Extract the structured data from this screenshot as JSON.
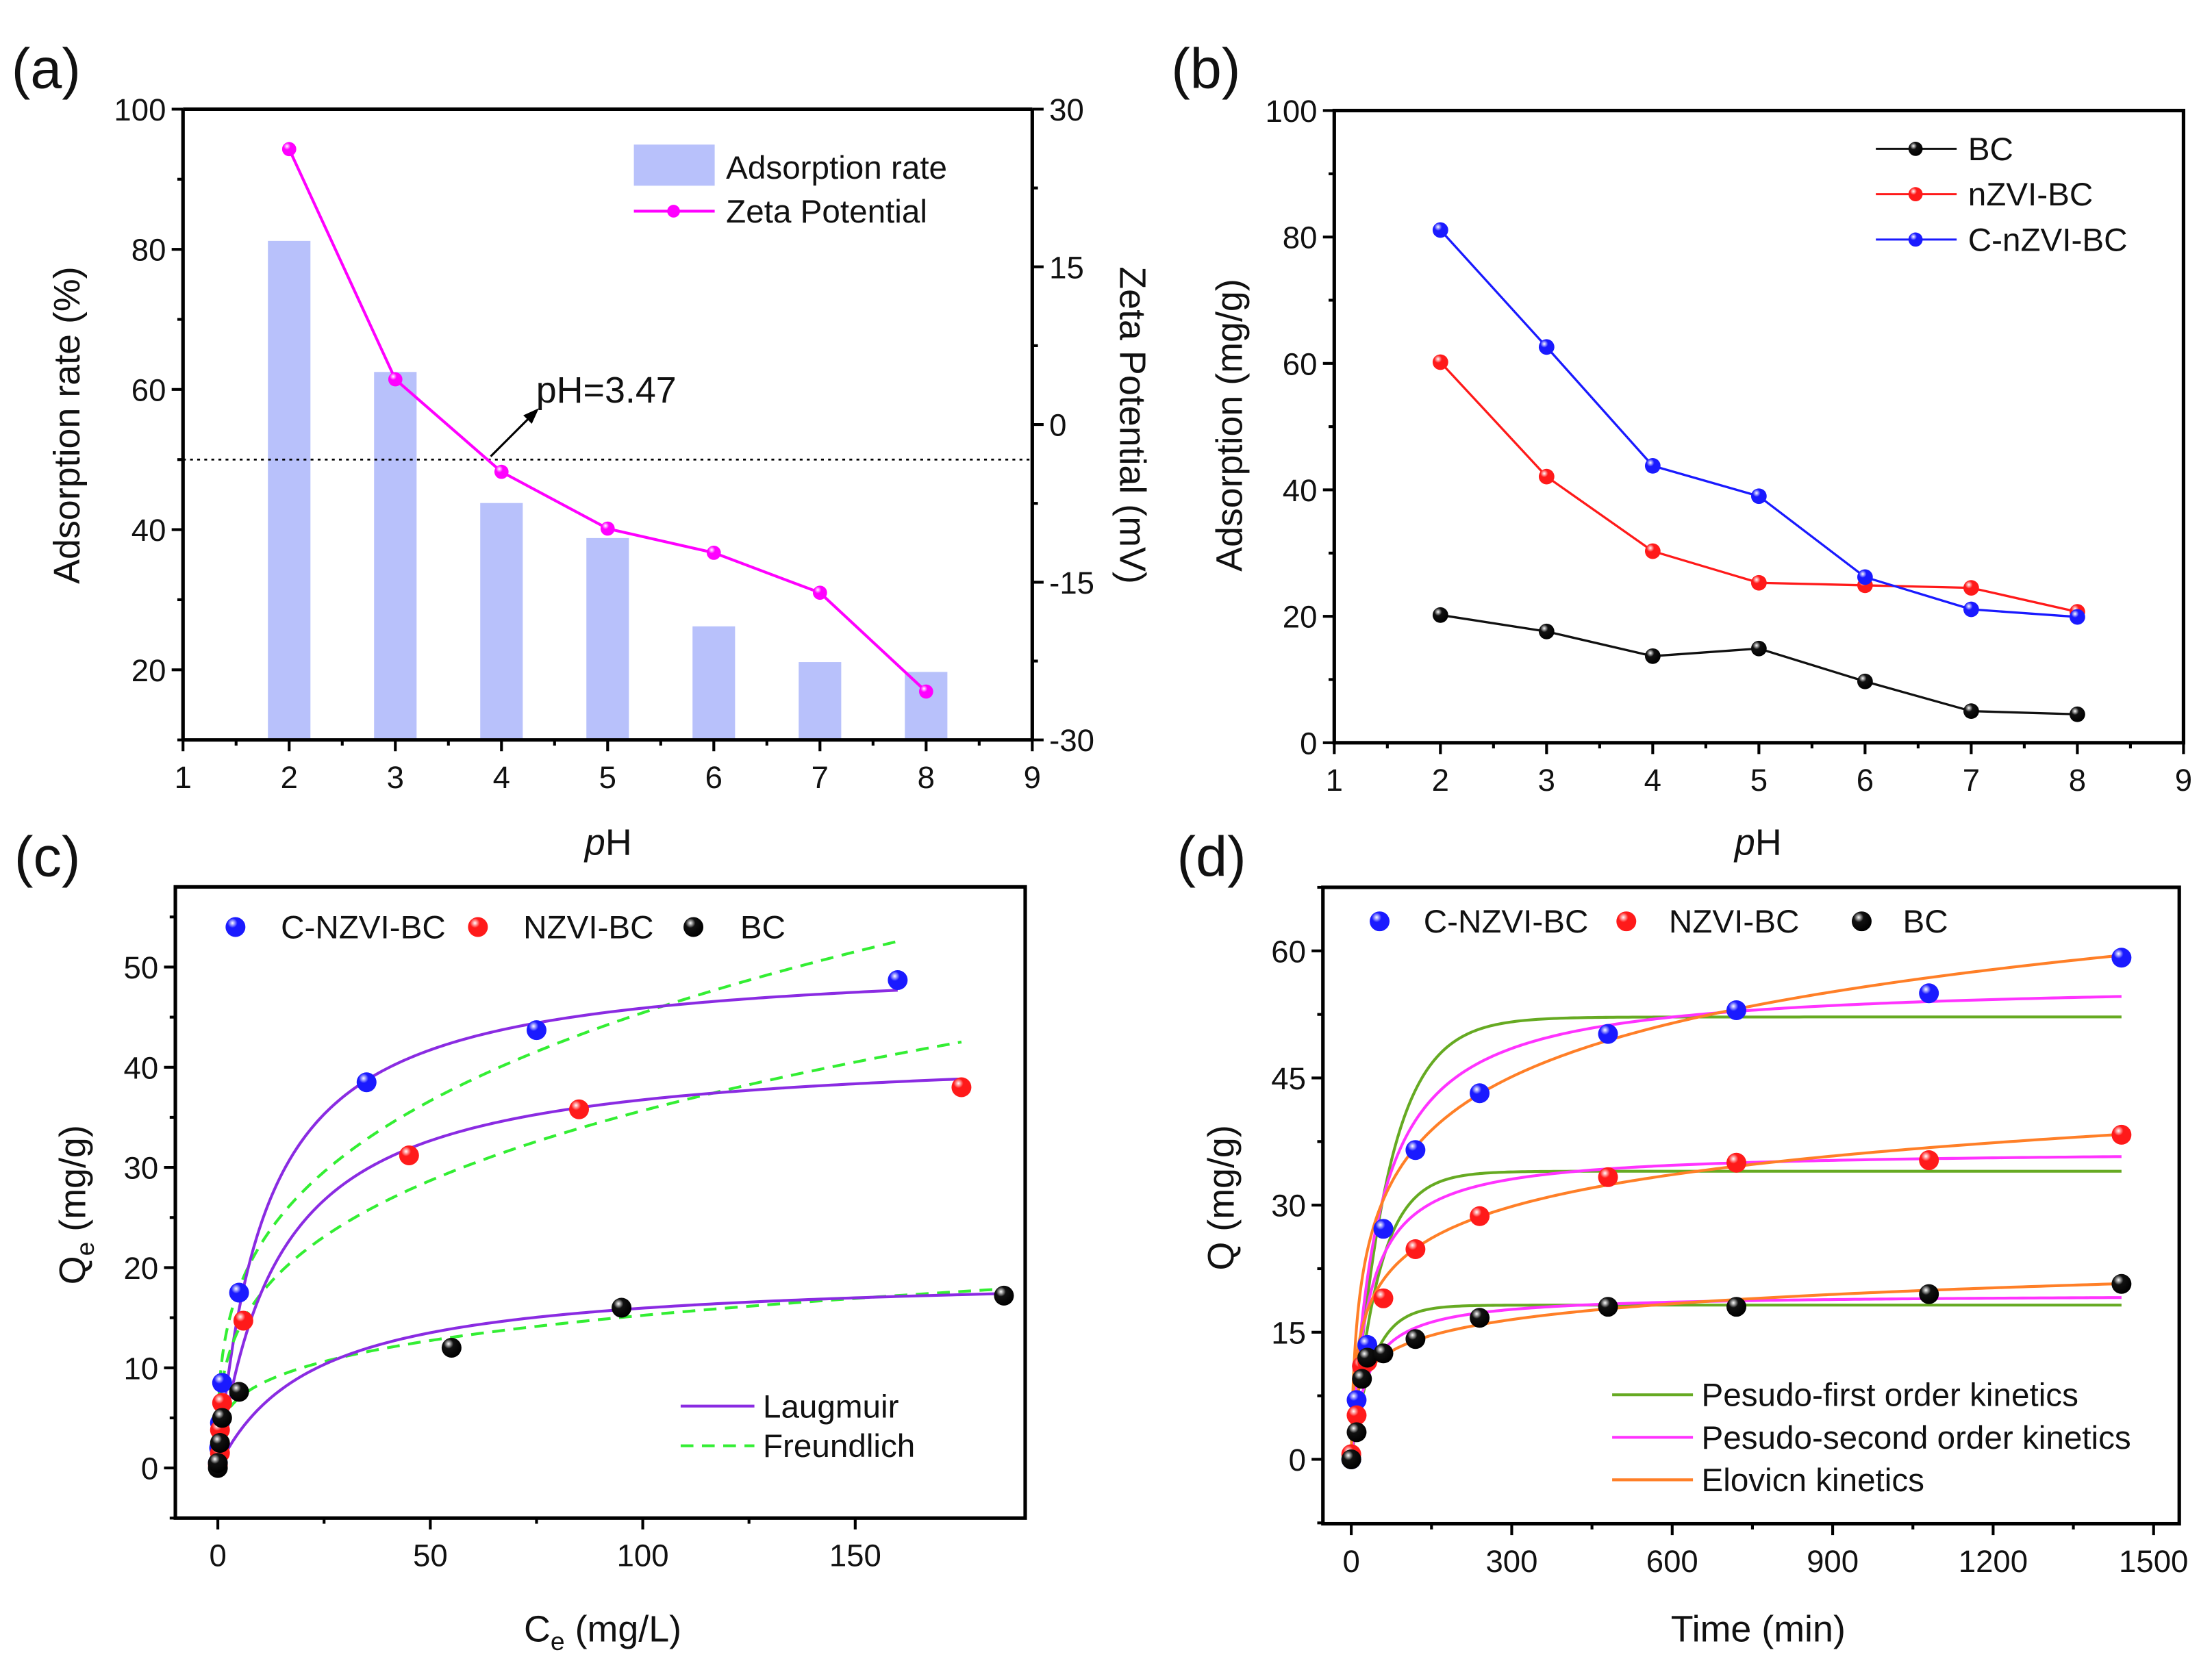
{
  "figure_labels": [
    "(a)",
    "(b)",
    "(c)",
    "(d)"
  ],
  "chart_data": [
    {
      "panel": "(a)",
      "type": "bar",
      "xlabel": "pH",
      "ylabel": "Adsorption rate (%)",
      "y2label": "Zeta Potential (mV)",
      "x": [
        2,
        3,
        4,
        5,
        6,
        7,
        8
      ],
      "xlim": [
        1,
        9
      ],
      "ylim": [
        10,
        100
      ],
      "y2lim": [
        -30,
        30
      ],
      "xticks": [
        1,
        2,
        3,
        4,
        5,
        6,
        7,
        8,
        9
      ],
      "yticks": [
        20,
        40,
        60,
        80,
        100
      ],
      "y2ticks": [
        -30,
        -15,
        0,
        15,
        30
      ],
      "series": [
        {
          "name": "Adsorption rate",
          "type": "bar",
          "axis": "left",
          "color": "#b8c1fb",
          "values": [
            81.2,
            62.5,
            43.8,
            38.8,
            26.2,
            21.1,
            19.7
          ]
        },
        {
          "name": "Zeta Potential",
          "type": "line",
          "axis": "right",
          "color": "#ff00ff",
          "values": [
            26.2,
            4.3,
            -4.5,
            -9.9,
            -12.2,
            -16.0,
            -25.4
          ]
        }
      ],
      "reference_line": {
        "axis": "left",
        "y": 50,
        "style": "dotted"
      },
      "annotation": "pH=3.47",
      "legend": "top-right"
    },
    {
      "panel": "(b)",
      "type": "line",
      "xlabel": "pH",
      "ylabel": "Adsorption (mg/g)",
      "x": [
        2,
        3,
        4,
        5,
        6,
        7,
        8
      ],
      "xlim": [
        1,
        9
      ],
      "ylim": [
        0,
        100
      ],
      "xticks": [
        1,
        2,
        3,
        4,
        5,
        6,
        7,
        8,
        9
      ],
      "yticks": [
        0,
        20,
        40,
        60,
        80,
        100
      ],
      "series": [
        {
          "name": "BC",
          "color": "#111111",
          "values": [
            20.2,
            17.6,
            13.7,
            14.9,
            9.7,
            5.0,
            4.5
          ]
        },
        {
          "name": "nZVI-BC",
          "color": "#ff1a1a",
          "values": [
            60.2,
            42.1,
            30.3,
            25.3,
            24.9,
            24.5,
            20.7
          ]
        },
        {
          "name": "C-nZVI-BC",
          "color": "#1a1aff",
          "values": [
            81.1,
            62.6,
            43.8,
            39.0,
            26.2,
            21.1,
            19.9
          ]
        }
      ],
      "legend": "top-right"
    },
    {
      "panel": "(c)",
      "type": "scatter",
      "xlabel_parts": [
        "C",
        "e",
        " (mg/L)"
      ],
      "ylabel_parts": [
        "Q",
        "e",
        " (mg/g)"
      ],
      "xlim": [
        -10,
        190
      ],
      "ylim": [
        -5,
        58
      ],
      "xticks": [
        0,
        50,
        100,
        150
      ],
      "yticks": [
        0,
        10,
        20,
        30,
        40,
        50
      ],
      "series": [
        {
          "name": "C-NZVI-BC",
          "color": "#1a1aff",
          "x": [
            0,
            0.3,
            0.5,
            1,
            5,
            35,
            75,
            160
          ],
          "y": [
            0.5,
            2,
            4.5,
            8.5,
            17.5,
            38.5,
            43.7,
            48.7
          ],
          "langmuir": {
            "qm": 51,
            "k": 0.09,
            "xmax": 160
          },
          "freundlich": {
            "kf": 10.9,
            "n": 0.31,
            "xmax": 160
          }
        },
        {
          "name": "NZVI-BC",
          "color": "#ff1a1a",
          "x": [
            0,
            0.5,
            0.5,
            1,
            6,
            45,
            85,
            175
          ],
          "y": [
            0.3,
            1.5,
            3.8,
            6.5,
            14.7,
            31.2,
            35.8,
            38.0
          ],
          "langmuir": {
            "qm": 42,
            "k": 0.07,
            "xmax": 175
          },
          "freundlich": {
            "kf": 8.4,
            "n": 0.314,
            "xmax": 175
          }
        },
        {
          "name": "BC",
          "color": "#111111",
          "x": [
            0,
            0,
            0.5,
            1,
            5,
            55,
            95,
            185
          ],
          "y": [
            0,
            0.5,
            2.5,
            5,
            7.6,
            12,
            16,
            17.2
          ],
          "langmuir": {
            "qm": 19.5,
            "k": 0.045,
            "xmax": 185
          },
          "freundlich": {
            "kf": 4.6,
            "n": 0.26,
            "xmax": 185
          }
        }
      ],
      "fit_legend": [
        {
          "name": "Laugmuir",
          "color": "#8a2be2",
          "style": "solid"
        },
        {
          "name": "Freundlich",
          "color": "#33ee33",
          "style": "dashed"
        }
      ],
      "legend": "top-left / bottom-right"
    },
    {
      "panel": "(d)",
      "type": "scatter",
      "xlabel": "Time (min)",
      "ylabel": "Q (mg/g)",
      "xlim": [
        -53,
        1548
      ],
      "ylim": [
        -7.6,
        67.5
      ],
      "xticks": [
        0,
        300,
        600,
        900,
        1200,
        1500
      ],
      "yticks": [
        0,
        15,
        30,
        45,
        60
      ],
      "x": [
        0,
        10,
        20,
        30,
        60,
        120,
        240,
        480,
        720,
        1080,
        1440
      ],
      "series": [
        {
          "name": "C-NZVI-BC",
          "color": "#1a1aff",
          "y": [
            0,
            7,
            11,
            13.5,
            27.2,
            36.5,
            43.2,
            50.2,
            53,
            55,
            59.2
          ],
          "pfo": {
            "qe": 52.2,
            "k": 0.015
          },
          "pso": {
            "qe": 56.5,
            "k": 0.000357
          },
          "elovich": {
            "a": 4.16,
            "b": 0.109
          }
        },
        {
          "name": "NZVI-BC",
          "color": "#ff1a1a",
          "y": [
            0.6,
            5.2,
            11,
            11.5,
            19,
            24.8,
            28.7,
            33.3,
            35,
            35.3,
            38.3
          ],
          "pfo": {
            "qe": 34,
            "k": 0.02
          },
          "pso": {
            "qe": 36.5,
            "k": 0.00088
          },
          "elovich": {
            "a": 4.37,
            "b": 0.184
          }
        },
        {
          "name": "BC",
          "color": "#111111",
          "y": [
            0,
            3.2,
            9.5,
            12,
            12.5,
            14.2,
            16.7,
            18,
            18,
            19.5,
            20.7
          ],
          "pfo": {
            "qe": 18.2,
            "k": 0.025
          },
          "pso": {
            "qe": 19.5,
            "k": 0.00167
          },
          "elovich": {
            "a": 4.02,
            "b": 0.37
          }
        }
      ],
      "fit_legend": [
        {
          "name": "Pesudo-first order kinetics",
          "color": "#66aa22"
        },
        {
          "name": "Pesudo-second order kinetics",
          "color": "#ff33ff"
        },
        {
          "name": "Elovicn kinetics",
          "color": "#ff7f27"
        }
      ],
      "legend": "top / bottom-right"
    }
  ]
}
